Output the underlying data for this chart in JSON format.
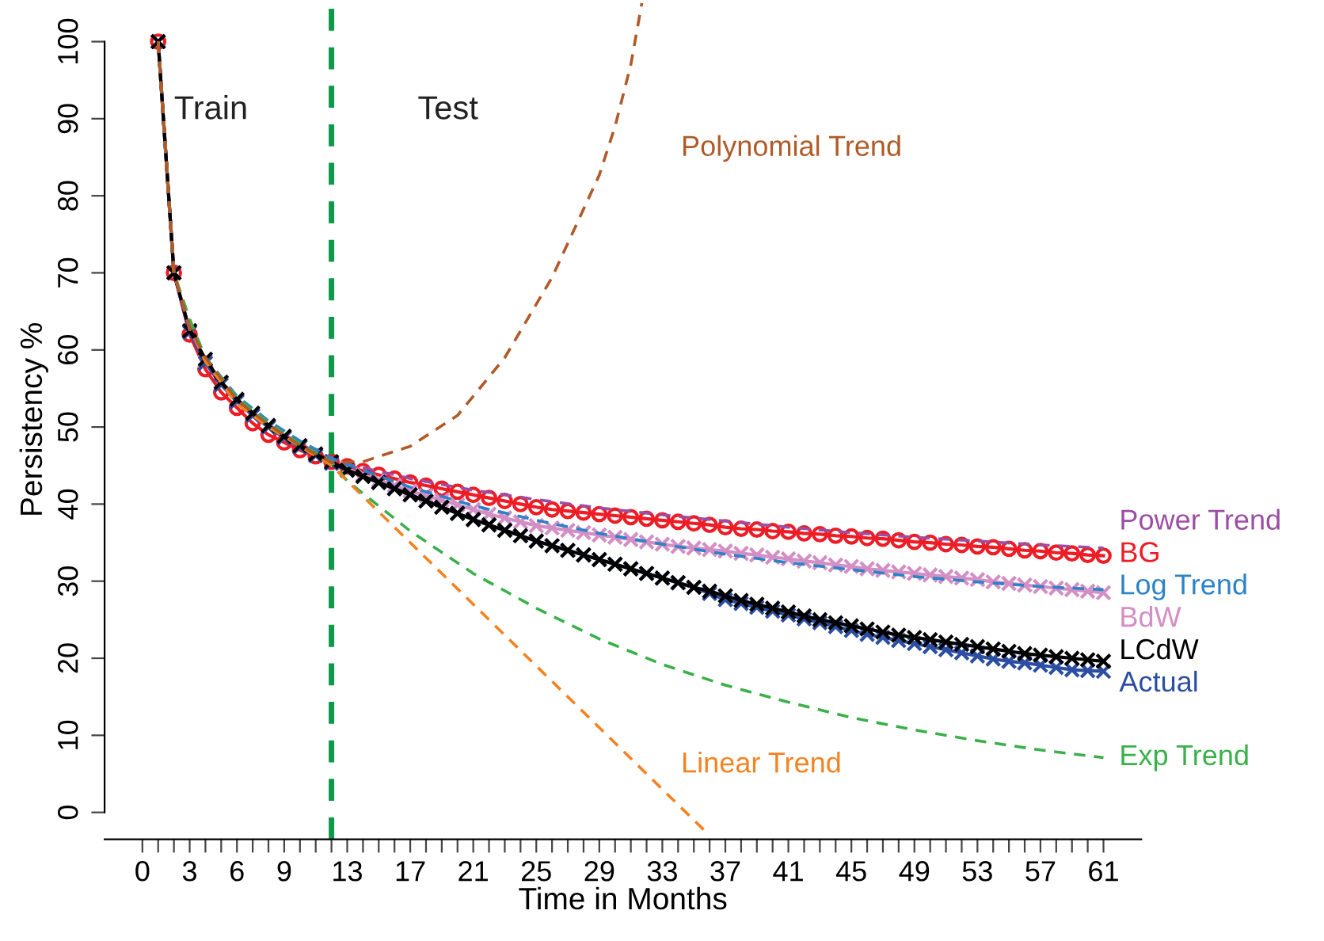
{
  "chart_data": {
    "type": "line",
    "xlabel": "Time in Months",
    "ylabel": "Persistency %",
    "xlim": [
      -2.4,
      63.4
    ],
    "ylim": [
      -3.5,
      105.4
    ],
    "xticks": [
      0,
      {
        "value": 1,
        "label": null
      },
      {
        "value": 2,
        "label": null
      },
      3,
      {
        "value": 4,
        "label": null
      },
      {
        "value": 5,
        "label": null
      },
      6,
      {
        "value": 7,
        "label": null
      },
      {
        "value": 8,
        "label": null
      },
      9,
      {
        "value": 10,
        "label": null
      },
      {
        "value": 11,
        "label": null
      },
      {
        "value": 12,
        "label": null
      },
      13,
      {
        "value": 14,
        "label": null
      },
      {
        "value": 15,
        "label": null
      },
      {
        "value": 16,
        "label": null
      },
      17,
      {
        "value": 18,
        "label": null
      },
      {
        "value": 19,
        "label": null
      },
      {
        "value": 20,
        "label": null
      },
      21,
      {
        "value": 22,
        "label": null
      },
      {
        "value": 23,
        "label": null
      },
      {
        "value": 24,
        "label": null
      },
      25,
      {
        "value": 26,
        "label": null
      },
      {
        "value": 27,
        "label": null
      },
      {
        "value": 28,
        "label": null
      },
      29,
      {
        "value": 30,
        "label": null
      },
      {
        "value": 31,
        "label": null
      },
      {
        "value": 32,
        "label": null
      },
      33,
      {
        "value": 34,
        "label": null
      },
      {
        "value": 35,
        "label": null
      },
      {
        "value": 36,
        "label": null
      },
      37,
      {
        "value": 38,
        "label": null
      },
      {
        "value": 39,
        "label": null
      },
      {
        "value": 40,
        "label": null
      },
      41,
      {
        "value": 42,
        "label": null
      },
      {
        "value": 43,
        "label": null
      },
      {
        "value": 44,
        "label": null
      },
      45,
      {
        "value": 46,
        "label": null
      },
      {
        "value": 47,
        "label": null
      },
      {
        "value": 48,
        "label": null
      },
      49,
      {
        "value": 50,
        "label": null
      },
      {
        "value": 51,
        "label": null
      },
      {
        "value": 52,
        "label": null
      },
      53,
      {
        "value": 54,
        "label": null
      },
      {
        "value": 55,
        "label": null
      },
      {
        "value": 56,
        "label": null
      },
      57,
      {
        "value": 58,
        "label": null
      },
      {
        "value": 59,
        "label": null
      },
      {
        "value": 60,
        "label": null
      },
      61
    ],
    "yticks": [
      0,
      10,
      20,
      30,
      40,
      50,
      60,
      70,
      80,
      90,
      100
    ],
    "grid": false,
    "legend": false,
    "x": [
      1,
      2,
      3,
      4,
      5,
      6,
      7,
      8,
      9,
      10,
      11,
      12,
      13,
      14,
      15,
      16,
      17,
      18,
      19,
      20,
      21,
      22,
      23,
      24,
      25,
      26,
      27,
      28,
      29,
      30,
      31,
      32,
      33,
      34,
      35,
      36,
      37,
      38,
      39,
      40,
      41,
      42,
      43,
      44,
      45,
      46,
      47,
      48,
      49,
      50,
      51,
      52,
      53,
      54,
      55,
      56,
      57,
      58,
      59,
      60,
      61
    ],
    "ref_lines": [
      {
        "axis": "x",
        "value": 12,
        "color": "#0b9a48",
        "line_style": "dashed"
      }
    ],
    "annotations": [
      "Train",
      "Test"
    ],
    "series": [
      {
        "name": "Power Trend",
        "color": "#9b4ea3",
        "line_style": "dashed",
        "marker": "none",
        "x": [
          1,
          2,
          3,
          4,
          6,
          8,
          10,
          12,
          13,
          17,
          21,
          25,
          29,
          33,
          37,
          41,
          45,
          49,
          53,
          57,
          61
        ],
        "values": [
          100,
          70,
          62.5,
          58.5,
          53.5,
          50.3,
          47.8,
          45.8,
          45.2,
          43.3,
          41.8,
          40.6,
          39.5,
          38.6,
          37.8,
          37.0,
          36.3,
          35.7,
          35.2,
          34.7,
          34.3
        ]
      },
      {
        "name": "Log Trend",
        "color": "#2b83c6",
        "line_style": "dashed",
        "marker": "none",
        "x": [
          1,
          2,
          3,
          4,
          6,
          8,
          10,
          12,
          13,
          17,
          21,
          25,
          29,
          33,
          37,
          41,
          45,
          49,
          53,
          57,
          61
        ],
        "values": [
          100,
          70,
          63,
          59,
          54,
          50.8,
          48.2,
          46,
          45.1,
          42.2,
          39.8,
          37.9,
          36.2,
          34.8,
          33.5,
          32.4,
          31.5,
          30.6,
          29.9,
          29.3,
          28.9
        ]
      },
      {
        "name": "Exp Trend",
        "color": "#3ab04a",
        "line_style": "dashed",
        "marker": "none",
        "x": [
          1,
          2,
          3,
          4,
          6,
          8,
          10,
          12,
          13,
          17,
          21,
          25,
          29,
          33,
          37,
          41,
          45,
          49,
          53,
          57,
          61
        ],
        "values": [
          100,
          70,
          64,
          59,
          53.8,
          50.5,
          47.8,
          45.5,
          43,
          36.5,
          31,
          26.5,
          22.5,
          19.2,
          16.5,
          14.3,
          12.3,
          10.7,
          9.3,
          8.1,
          7.1
        ]
      },
      {
        "name": "Linear Trend",
        "color": "#f58220",
        "line_style": "dashed",
        "marker": "none",
        "x": [
          1,
          2,
          3,
          4,
          6,
          8,
          10,
          12,
          14,
          18,
          22,
          26,
          30,
          34,
          36
        ],
        "values": [
          100,
          70,
          63,
          58.5,
          53,
          50,
          47.5,
          45,
          41,
          33,
          25,
          17,
          9,
          1,
          -3
        ]
      },
      {
        "name": "Polynomial Trend",
        "color": "#b05a28",
        "line_style": "dashed",
        "marker": "none",
        "x": [
          1,
          2,
          3,
          4,
          6,
          8,
          10,
          12,
          14,
          17,
          20,
          23,
          26,
          29,
          30,
          31,
          31.7
        ],
        "values": [
          100,
          70,
          63,
          59,
          53.5,
          50.3,
          47.6,
          45.4,
          45.5,
          47.5,
          51.5,
          59,
          69.4,
          82.7,
          89,
          97,
          105
        ]
      },
      {
        "name": "BG",
        "color": "#ee1c25",
        "line_style": "solid",
        "marker": "circle",
        "values": [
          100,
          70,
          62,
          57.5,
          54.5,
          52.5,
          50.5,
          49,
          48,
          47,
          46.2,
          45.5,
          44.9,
          44.3,
          43.8,
          43.3,
          42.8,
          42.4,
          42.0,
          41.6,
          41.2,
          40.8,
          40.4,
          40.0,
          39.6,
          39.3,
          39.1,
          38.9,
          38.7,
          38.5,
          38.3,
          38.1,
          37.9,
          37.7,
          37.5,
          37.3,
          37.0,
          36.8,
          36.7,
          36.5,
          36.4,
          36.2,
          36.1,
          35.9,
          35.8,
          35.6,
          35.5,
          35.3,
          35.1,
          35.0,
          34.8,
          34.7,
          34.5,
          34.4,
          34.2,
          34.0,
          33.9,
          33.7,
          33.6,
          33.4,
          33.3
        ]
      },
      {
        "name": "BdW",
        "color": "#d48ec6",
        "line_style": "solid",
        "marker": "cross",
        "values": [
          100,
          70,
          62.5,
          58.5,
          55.8,
          53.5,
          51.5,
          50,
          48.7,
          47.5,
          46.4,
          45.4,
          44.6,
          43.8,
          43.1,
          42.4,
          41.7,
          41.1,
          40.5,
          39.9,
          39.3,
          38.7,
          38.2,
          37.7,
          37.2,
          36.9,
          36.6,
          36.3,
          36.0,
          35.7,
          35.4,
          35.1,
          34.8,
          34.5,
          34.3,
          34.1,
          33.9,
          33.6,
          33.4,
          33.1,
          32.9,
          32.6,
          32.4,
          32.1,
          31.9,
          31.6,
          31.4,
          31.2,
          31.0,
          30.8,
          30.6,
          30.4,
          30.2,
          29.9,
          29.7,
          29.5,
          29.3,
          29.1,
          28.9,
          28.7,
          28.5
        ]
      },
      {
        "name": "Actual",
        "color": "#2b4ea2",
        "line_style": "solid",
        "marker": "cross",
        "values": [
          100,
          70,
          62.3,
          58.3,
          55.5,
          53.3,
          51.5,
          50,
          48.6,
          47.4,
          46.3,
          45.3,
          44.4,
          43.6,
          42.8,
          42.0,
          41.2,
          40.4,
          39.6,
          38.8,
          38.0,
          37.3,
          36.6,
          35.9,
          35.2,
          34.6,
          34.0,
          33.4,
          32.8,
          32.2,
          31.6,
          31.0,
          30.4,
          29.8,
          29.2,
          28.4,
          27.6,
          27.1,
          26.6,
          26.1,
          25.6,
          25.1,
          24.6,
          24.1,
          23.6,
          23.1,
          22.7,
          22.3,
          21.9,
          21.5,
          21.1,
          20.7,
          20.3,
          19.9,
          19.6,
          19.4,
          19.1,
          18.8,
          18.5,
          18.4,
          18.3
        ]
      },
      {
        "name": "LCdW",
        "color": "#000000",
        "line_style": "solid",
        "marker": "cross",
        "values": [
          100,
          70,
          62.5,
          58.8,
          55.8,
          53.6,
          51.8,
          50.2,
          48.8,
          47.6,
          46.5,
          45.5,
          44.4,
          43.6,
          42.8,
          42.0,
          41.2,
          40.4,
          39.6,
          38.8,
          38.0,
          37.3,
          36.6,
          35.9,
          35.2,
          34.6,
          34.0,
          33.4,
          32.8,
          32.2,
          31.6,
          31.0,
          30.4,
          29.8,
          29.2,
          28.7,
          28.1,
          27.5,
          27.0,
          26.5,
          26.0,
          25.5,
          25.0,
          24.6,
          24.2,
          23.8,
          23.4,
          23.0,
          22.7,
          22.4,
          22.1,
          21.8,
          21.5,
          21.2,
          20.9,
          20.6,
          20.4,
          20.2,
          20.0,
          19.8,
          19.6
        ]
      }
    ]
  }
}
